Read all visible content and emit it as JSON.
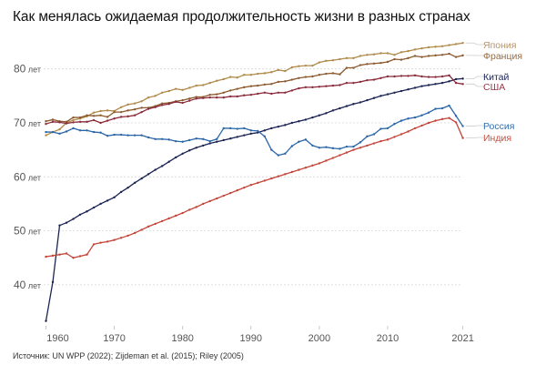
{
  "chart_data": {
    "type": "line",
    "title": "Как менялась ожидаемая продолжительность жизни в разных странах",
    "source": "Источник: UN WPP (2022); Zijdeman et al. (2015); Riley (2005)",
    "x_start": 1960,
    "x_end": 2021,
    "x_ticks": [
      1960,
      1970,
      1980,
      1990,
      2000,
      2010,
      2021
    ],
    "y_ticks": [
      40,
      50,
      60,
      70,
      80
    ],
    "y_tick_labels": [
      "40 лет",
      "50 лет",
      "60 лет",
      "70 лет",
      "80 лет"
    ],
    "ylim": [
      33,
      85
    ],
    "grid": true,
    "legend": "right, direct labels",
    "series": [
      {
        "name": "Япония",
        "color": "#b18b4c",
        "label_color": "#b8946a",
        "values": [
          67.7,
          68.3,
          68.8,
          70.0,
          70.5,
          70.8,
          71.2,
          71.9,
          72.2,
          72.3,
          72.2,
          72.9,
          73.4,
          73.6,
          74.0,
          74.7,
          75.0,
          75.6,
          75.9,
          76.3,
          76.1,
          76.5,
          76.9,
          77.0,
          77.4,
          77.8,
          78.1,
          78.5,
          78.4,
          78.9,
          78.9,
          79.1,
          79.2,
          79.4,
          79.8,
          79.6,
          80.3,
          80.5,
          80.6,
          80.6,
          81.2,
          81.5,
          81.6,
          81.8,
          82.0,
          82.0,
          82.4,
          82.6,
          82.7,
          82.9,
          82.9,
          82.6,
          83.1,
          83.3,
          83.6,
          83.8,
          84.0,
          84.1,
          84.2,
          84.4,
          84.6,
          84.8
        ]
      },
      {
        "name": "Франция",
        "color": "#8c5a2f",
        "label_color": "#9a6a40",
        "values": [
          70.3,
          70.6,
          70.3,
          70.2,
          71.0,
          71.0,
          71.4,
          71.3,
          71.4,
          71.1,
          72.0,
          72.0,
          72.3,
          72.5,
          72.8,
          72.8,
          73.1,
          73.6,
          73.7,
          74.0,
          74.2,
          74.5,
          74.8,
          74.8,
          75.2,
          75.3,
          75.6,
          76.0,
          76.3,
          76.6,
          76.8,
          76.9,
          77.1,
          77.2,
          77.6,
          77.7,
          78.0,
          78.3,
          78.5,
          78.6,
          78.9,
          79.1,
          79.2,
          79.0,
          80.2,
          80.2,
          80.7,
          80.9,
          81.0,
          81.1,
          81.3,
          81.8,
          81.7,
          82.0,
          82.4,
          82.2,
          82.4,
          82.5,
          82.6,
          82.8,
          82.2,
          82.5
        ]
      },
      {
        "name": "Китай",
        "color": "#1b2452",
        "label_color": "#1b2452",
        "values": [
          33.3,
          40.5,
          51.0,
          51.5,
          52.2,
          53.0,
          53.6,
          54.3,
          55.0,
          55.6,
          56.2,
          57.2,
          58.0,
          58.9,
          59.7,
          60.5,
          61.3,
          62.0,
          62.8,
          63.6,
          64.3,
          64.9,
          65.4,
          65.8,
          66.2,
          66.5,
          66.8,
          67.1,
          67.4,
          67.7,
          68.0,
          68.2,
          68.6,
          69.0,
          69.3,
          69.6,
          70.0,
          70.3,
          70.6,
          71.0,
          71.4,
          71.8,
          72.3,
          72.7,
          73.1,
          73.5,
          73.8,
          74.2,
          74.6,
          75.0,
          75.3,
          75.6,
          75.9,
          76.2,
          76.5,
          76.8,
          77.0,
          77.2,
          77.4,
          77.7,
          78.1,
          78.2
        ]
      },
      {
        "name": "США",
        "color": "#8a2b3c",
        "label_color": "#9a3848",
        "values": [
          69.8,
          70.2,
          70.1,
          69.9,
          70.1,
          70.2,
          70.2,
          70.5,
          70.0,
          70.4,
          70.8,
          71.1,
          71.2,
          71.4,
          72.0,
          72.6,
          72.9,
          73.3,
          73.5,
          73.9,
          73.7,
          74.1,
          74.5,
          74.6,
          74.7,
          74.7,
          74.7,
          74.9,
          74.9,
          75.1,
          75.2,
          75.4,
          75.6,
          75.4,
          75.6,
          75.6,
          76.0,
          76.4,
          76.6,
          76.6,
          76.7,
          76.8,
          76.9,
          77.0,
          77.4,
          77.4,
          77.6,
          77.9,
          78.0,
          78.3,
          78.6,
          78.6,
          78.7,
          78.7,
          78.8,
          78.6,
          78.5,
          78.5,
          78.6,
          78.8,
          77.4,
          77.2
        ]
      },
      {
        "name": "Россия",
        "color": "#2b66a8",
        "label_color": "#3470b0",
        "values": [
          68.3,
          68.3,
          68.0,
          68.4,
          69.0,
          68.6,
          68.6,
          68.3,
          68.2,
          67.6,
          67.8,
          67.8,
          67.7,
          67.7,
          67.7,
          67.3,
          67.0,
          67.0,
          66.9,
          66.6,
          66.5,
          66.8,
          67.1,
          67.0,
          66.6,
          67.0,
          69.0,
          69.0,
          68.9,
          69.0,
          68.6,
          68.5,
          67.5,
          65.0,
          64.0,
          64.3,
          65.7,
          66.5,
          66.9,
          65.8,
          65.4,
          65.5,
          65.3,
          65.2,
          65.6,
          65.6,
          66.4,
          67.5,
          67.9,
          68.9,
          69.0,
          69.8,
          70.4,
          70.8,
          71.0,
          71.4,
          71.9,
          72.6,
          72.7,
          73.2,
          71.3,
          69.4
        ]
      },
      {
        "name": "Индия",
        "color": "#c2453a",
        "label_color": "#c4503f",
        "values": [
          45.2,
          45.4,
          45.6,
          45.8,
          45.0,
          45.3,
          45.6,
          47.5,
          47.8,
          48.0,
          48.3,
          48.7,
          49.1,
          49.6,
          50.2,
          50.8,
          51.3,
          51.8,
          52.3,
          52.8,
          53.3,
          53.9,
          54.4,
          55.0,
          55.5,
          56.0,
          56.5,
          57.0,
          57.5,
          58.0,
          58.5,
          58.9,
          59.3,
          59.7,
          60.1,
          60.5,
          60.9,
          61.3,
          61.7,
          62.1,
          62.5,
          63.0,
          63.5,
          64.0,
          64.5,
          65.0,
          65.4,
          65.8,
          66.2,
          66.6,
          66.9,
          67.4,
          67.9,
          68.4,
          69.0,
          69.5,
          70.0,
          70.4,
          70.7,
          70.9,
          70.1,
          67.2
        ]
      }
    ]
  }
}
